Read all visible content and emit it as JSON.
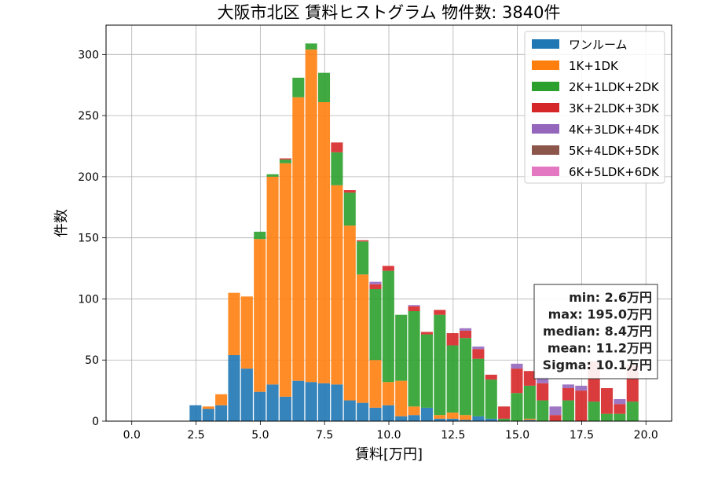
{
  "chart_data": {
    "type": "bar",
    "stacked": true,
    "title": "大阪市北区 賃料ヒストグラム 物件数: 3840件",
    "xlabel": "賃料[万円]",
    "ylabel": "件数",
    "xlim": [
      -1.0,
      21.0
    ],
    "ylim": [
      0,
      324
    ],
    "xticks": [
      "0.0",
      "2.5",
      "5.0",
      "7.5",
      "10.0",
      "12.5",
      "15.0",
      "17.5",
      "20.0"
    ],
    "yticks": [
      "0",
      "50",
      "100",
      "150",
      "200",
      "250",
      "300"
    ],
    "grid": true,
    "legend_position": "top-right",
    "bin_width": 0.5,
    "x": [
      2.5,
      3.0,
      3.5,
      4.0,
      4.5,
      5.0,
      5.5,
      6.0,
      6.5,
      7.0,
      7.5,
      8.0,
      8.5,
      9.0,
      9.5,
      10.0,
      10.5,
      11.0,
      11.5,
      12.0,
      12.5,
      13.0,
      13.5,
      14.0,
      14.5,
      15.0,
      15.5,
      16.0,
      16.5,
      17.0,
      17.5,
      18.0,
      18.5,
      19.0,
      19.5
    ],
    "series": [
      {
        "name": "ワンルーム",
        "color": "#1f77b4",
        "values": [
          13,
          10,
          13,
          54,
          43,
          24,
          30,
          20,
          33,
          32,
          31,
          30,
          17,
          15,
          11,
          13,
          4,
          5,
          11,
          2,
          2,
          1,
          4,
          2,
          0,
          0,
          1,
          0,
          0,
          0,
          0,
          0,
          0,
          0,
          0
        ]
      },
      {
        "name": "1K+1DK",
        "color": "#ff7f0e",
        "values": [
          0,
          2,
          9,
          51,
          59,
          125,
          170,
          191,
          232,
          272,
          230,
          163,
          143,
          105,
          39,
          19,
          29,
          7,
          0,
          3,
          5,
          4,
          0,
          0,
          0,
          0,
          1,
          0,
          0,
          0,
          0,
          0,
          0,
          0,
          0
        ]
      },
      {
        "name": "2K+1LDK+2DK",
        "color": "#2ca02c",
        "values": [
          0,
          0,
          0,
          0,
          0,
          6,
          2,
          3,
          16,
          5,
          24,
          27,
          27,
          27,
          58,
          91,
          54,
          78,
          60,
          82,
          55,
          63,
          47,
          32,
          2,
          23,
          27,
          17,
          0,
          17,
          0,
          16,
          6,
          6,
          16
        ]
      },
      {
        "name": "3K+2LDK+3DK",
        "color": "#d62728",
        "values": [
          0,
          0,
          0,
          0,
          0,
          0,
          0,
          1,
          0,
          0,
          0,
          8,
          2,
          1,
          4,
          4,
          0,
          4,
          2,
          4,
          10,
          6,
          8,
          4,
          10,
          20,
          12,
          14,
          5,
          10,
          25,
          33,
          21,
          8,
          30
        ]
      },
      {
        "name": "4K+3LDK+4DK",
        "color": "#9467bd",
        "values": [
          0,
          0,
          0,
          0,
          0,
          0,
          0,
          0,
          0,
          0,
          0,
          0,
          0,
          0,
          2,
          0,
          0,
          1,
          0,
          0,
          0,
          2,
          2,
          0,
          0,
          4,
          0,
          5,
          7,
          3,
          4,
          0,
          0,
          4,
          0
        ]
      },
      {
        "name": "5K+4LDK+5DK",
        "color": "#8c564b",
        "values": [
          0,
          0,
          0,
          0,
          0,
          0,
          0,
          0,
          0,
          0,
          0,
          0,
          0,
          0,
          0,
          0,
          0,
          0,
          0,
          0,
          0,
          0,
          0,
          0,
          0,
          0,
          0,
          0,
          0,
          0,
          0,
          0,
          0,
          0,
          0
        ]
      },
      {
        "name": "6K+5LDK+6DK",
        "color": "#e377c2",
        "values": [
          0,
          0,
          0,
          0,
          0,
          0,
          0,
          0,
          0,
          0,
          0,
          0,
          0,
          0,
          0,
          0,
          0,
          0,
          0,
          0,
          0,
          0,
          0,
          0,
          0,
          0,
          0,
          0,
          0,
          0,
          0,
          0,
          0,
          0,
          0
        ]
      }
    ],
    "stats": [
      "min: 2.6万円",
      "max: 195.0万円",
      "median: 8.4万円",
      "mean: 11.2万円",
      "Sigma: 10.1万円"
    ]
  }
}
